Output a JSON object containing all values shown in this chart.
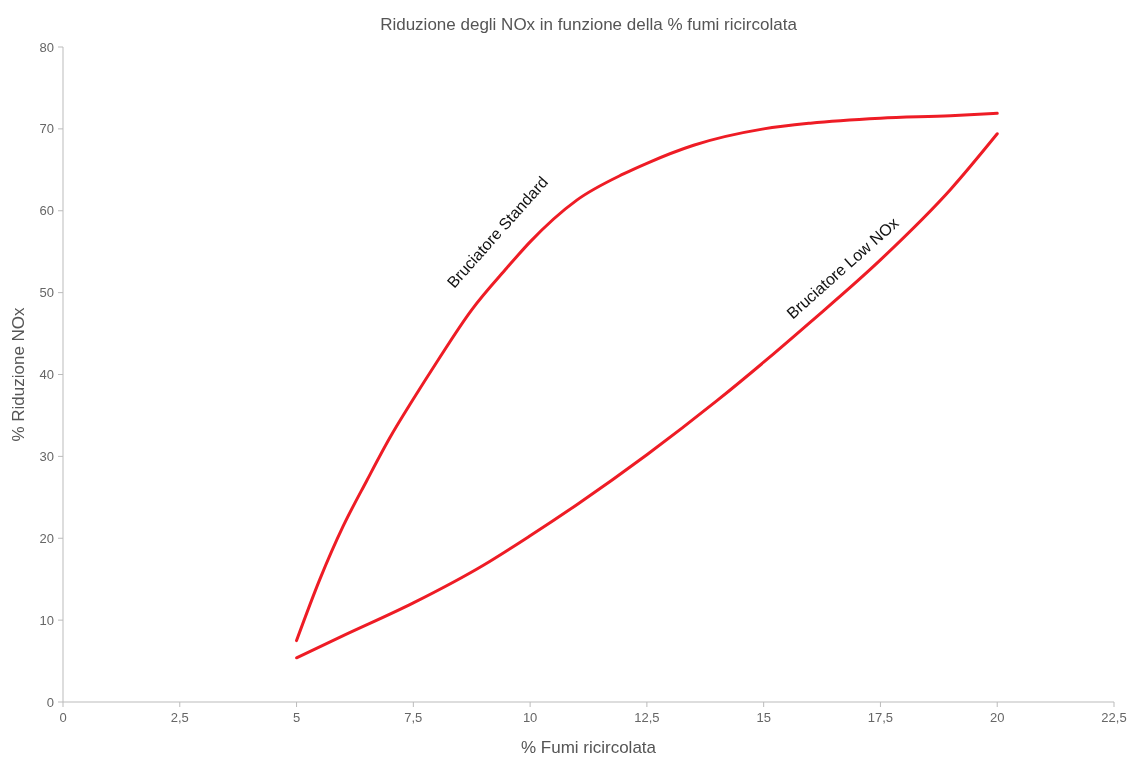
{
  "chart_data": {
    "type": "line",
    "title": "Riduzione degli NOx  in funzione della % fumi ricircolata",
    "xlabel": "% Fumi ricircolata",
    "ylabel": "% Riduzione NOx",
    "xlim": [
      0,
      22.5
    ],
    "xticks": [
      0,
      {
        "value": 2.5,
        "label": "2,5"
      },
      5,
      {
        "value": 7.5,
        "label": "7,5"
      },
      10,
      {
        "value": 12.5,
        "label": "12,5"
      },
      15,
      {
        "value": 17.5,
        "label": "17,5"
      },
      20,
      {
        "value": 22.5,
        "label": "22,5"
      }
    ],
    "ylim": [
      0,
      80
    ],
    "yticks": [
      0,
      10,
      20,
      30,
      40,
      50,
      60,
      70,
      80
    ],
    "grid": false,
    "marker": "none",
    "line_style": "solid",
    "series": [
      {
        "name": "Bruciatore Standard",
        "color": "#ee1c25",
        "x": [
          5,
          5.5,
          6,
          6.5,
          7,
          7.5,
          8,
          8.75,
          9.5,
          10,
          11,
          12,
          12.5,
          13.5,
          15,
          16,
          17.5,
          19,
          20
        ],
        "values": [
          7.5,
          15,
          21.5,
          27,
          32.3,
          37,
          41.5,
          47.9,
          53,
          56.2,
          61.3,
          64.5,
          65.8,
          68,
          70,
          70.7,
          71.3,
          71.6,
          71.9
        ]
      },
      {
        "name": "Bruciatore Low NOx",
        "color": "#ee1c25",
        "x": [
          5,
          6,
          7.5,
          9,
          10,
          11,
          12.5,
          14,
          15,
          16,
          17.5,
          19,
          20
        ],
        "values": [
          5.4,
          8.1,
          12.1,
          16.7,
          20.3,
          24.1,
          30.2,
          36.8,
          41.5,
          46.4,
          54,
          62.6,
          69.4
        ]
      }
    ]
  }
}
